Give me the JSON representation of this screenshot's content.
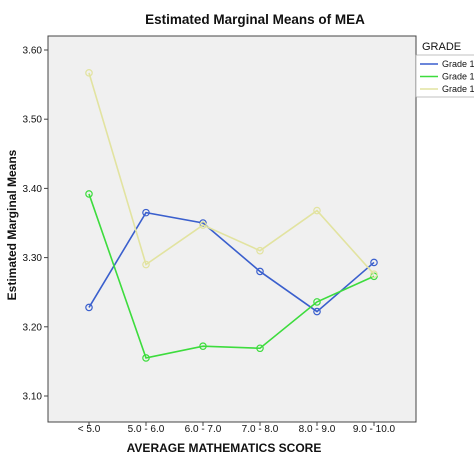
{
  "chart_data": {
    "type": "line",
    "title": "Estimated Marginal Means of MEA",
    "xlabel": "AVERAGE MATHEMATICS SCORE",
    "ylabel": "Estimated Marginal Means",
    "categories": [
      "< 5.0",
      "5.0 - 6.0",
      "6.0 - 7.0",
      "7.0 - 8.0",
      "8.0 - 9.0",
      "9.0 - 10.0"
    ],
    "ylim": [
      3.08,
      3.65
    ],
    "yticks": [
      "3.10",
      "3.20",
      "3.30",
      "3.40",
      "3.50",
      "3.60"
    ],
    "grid": false,
    "legend_title": "GRADE",
    "legend_position": "right",
    "series": [
      {
        "name": "Grade 1",
        "color": "#3a5fcd",
        "values": [
          3.228,
          3.365,
          3.35,
          3.28,
          3.222,
          3.293
        ]
      },
      {
        "name": "Grade 1",
        "color": "#3ddc3d",
        "values": [
          3.392,
          3.155,
          3.172,
          3.169,
          3.236,
          3.273
        ]
      },
      {
        "name": "Grade 1",
        "color": "#e2e3a0",
        "values": [
          3.567,
          3.29,
          3.347,
          3.31,
          3.368,
          3.276
        ]
      }
    ]
  }
}
